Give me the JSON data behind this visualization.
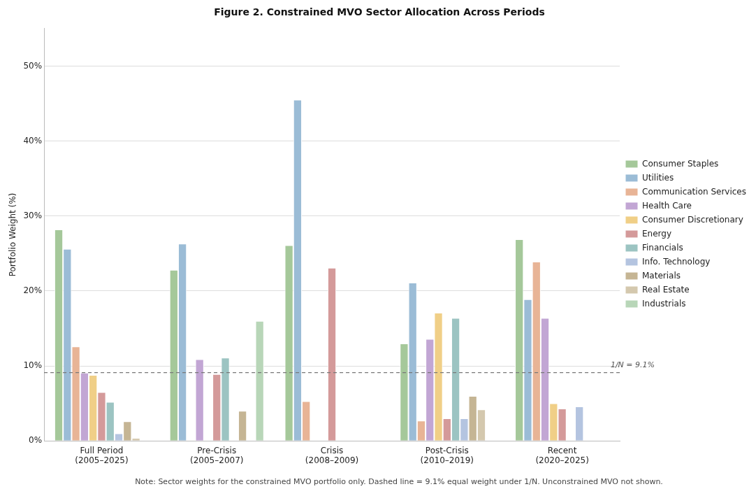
{
  "chart_data": {
    "type": "bar",
    "title": "Figure 2. Constrained MVO Sector Allocation Across Periods",
    "ylabel": "Portfolio Weight (%)",
    "categories": [
      "Full Period\n(2005–2025)",
      "Pre-Crisis\n(2005–2007)",
      "Crisis\n(2008–2009)",
      "Post-Crisis\n(2010–2019)",
      "Recent\n(2020–2025)"
    ],
    "series": [
      {
        "name": "Consumer Staples",
        "color": "#a5c89a",
        "values": [
          28.2,
          22.8,
          26.1,
          13.0,
          26.9
        ]
      },
      {
        "name": "Utilities",
        "color": "#9bbcd6",
        "values": [
          25.6,
          26.3,
          45.5,
          21.1,
          18.9
        ]
      },
      {
        "name": "Communication Services",
        "color": "#e8b496",
        "values": [
          12.6,
          0,
          5.3,
          2.7,
          23.9
        ]
      },
      {
        "name": "Health Care",
        "color": "#c2a6d4",
        "values": [
          9.1,
          10.9,
          0,
          13.6,
          16.4
        ]
      },
      {
        "name": "Consumer Discretionary",
        "color": "#f0cf87",
        "values": [
          8.8,
          0,
          0,
          17.1,
          5.0
        ]
      },
      {
        "name": "Energy",
        "color": "#d49a9a",
        "values": [
          6.5,
          8.9,
          23.1,
          3.0,
          4.3
        ]
      },
      {
        "name": "Financials",
        "color": "#9cc4c2",
        "values": [
          5.2,
          11.1,
          0,
          16.4,
          0
        ]
      },
      {
        "name": "Info. Technology",
        "color": "#b4c4e0",
        "values": [
          1.0,
          0,
          0,
          3.0,
          4.6
        ]
      },
      {
        "name": "Materials",
        "color": "#c5b594",
        "values": [
          2.6,
          4.0,
          0,
          6.0,
          0
        ]
      },
      {
        "name": "Real Estate",
        "color": "#d4c8ae",
        "values": [
          0.4,
          0,
          0,
          4.2,
          0
        ]
      },
      {
        "name": "Industrials",
        "color": "#b8d6b8",
        "values": [
          0,
          16.0,
          0,
          0,
          0
        ]
      }
    ],
    "ylim": [
      0,
      55
    ],
    "yticks": [
      {
        "value": 0,
        "label": "0%"
      },
      {
        "value": 10,
        "label": "10%"
      },
      {
        "value": 20,
        "label": "20%"
      },
      {
        "value": 30,
        "label": "30%"
      },
      {
        "value": 40,
        "label": "40%"
      },
      {
        "value": 50,
        "label": "50%"
      }
    ],
    "ref_lines": [
      {
        "axis": "y",
        "value": 9.1,
        "label": "1/N = 9.1%",
        "color": "#777777",
        "line_style": "dashed"
      }
    ],
    "grid": "y",
    "legend": "right",
    "annotations": [
      "Note: Sector weights for the constrained MVO portfolio only. Dashed line = 9.1% equal weight under 1/N. Unconstrained MVO not shown."
    ]
  }
}
